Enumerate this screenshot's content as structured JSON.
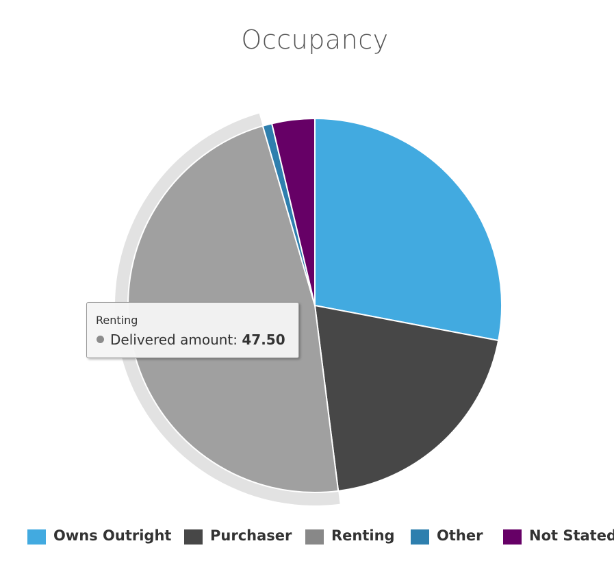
{
  "chart_data": {
    "type": "pie",
    "title": "Occupancy",
    "series_name": "Delivered amount",
    "slices": [
      {
        "name": "Owns Outright",
        "value": 28.0,
        "color": "#42aae0"
      },
      {
        "name": "Purchaser",
        "value": 20.0,
        "color": "#474747"
      },
      {
        "name": "Renting",
        "value": 47.5,
        "color": "#a0a0a0"
      },
      {
        "name": "Other",
        "value": 0.8,
        "color": "#2e7fae"
      },
      {
        "name": "Not Stated",
        "value": 3.7,
        "color": "#660066"
      }
    ],
    "hovered_slice": "Renting",
    "legend": {
      "position": "bottom"
    }
  },
  "tooltip": {
    "name": "Renting",
    "series": "Delivered amount:",
    "value": "47.50"
  },
  "legend_items": [
    {
      "label": "Owns Outright",
      "color": "#42aae0"
    },
    {
      "label": "Purchaser",
      "color": "#474747"
    },
    {
      "label": "Renting",
      "color": "#888888"
    },
    {
      "label": "Other",
      "color": "#2e7fae"
    },
    {
      "label": "Not Stated",
      "color": "#660066"
    }
  ]
}
